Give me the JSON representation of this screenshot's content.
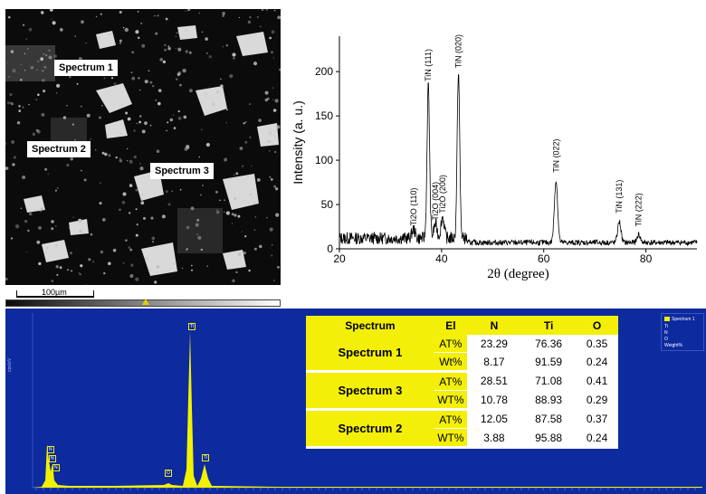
{
  "sem": {
    "labels": [
      "Spectrum 1",
      "Spectrum 2",
      "Spectrum 3"
    ],
    "scale_bar": "100µm"
  },
  "chart_data": {
    "type": "line",
    "xlabel": "2θ (degree)",
    "ylabel": "Intensity (a. u.)",
    "xlim": [
      20,
      90
    ],
    "ylim": [
      0,
      240
    ],
    "xticks": [
      20,
      40,
      60,
      80
    ],
    "yticks": [
      0,
      50,
      100,
      150,
      200
    ],
    "baseline": 12,
    "peaks": [
      {
        "x": 34.5,
        "y": 22,
        "label": "Ti2O (110)"
      },
      {
        "x": 37.4,
        "y": 185,
        "label": "TiN (111)"
      },
      {
        "x": 38.8,
        "y": 28,
        "label": "Ti2O (004)"
      },
      {
        "x": 40.2,
        "y": 36,
        "label": "Ti2O (200)"
      },
      {
        "x": 43.3,
        "y": 200,
        "label": "TiN (020)"
      },
      {
        "x": 62.4,
        "y": 82,
        "label": "TiN (022)"
      },
      {
        "x": 74.8,
        "y": 36,
        "label": "TiN (131)"
      },
      {
        "x": 78.6,
        "y": 21,
        "label": "TiN (222)"
      }
    ],
    "grid": false
  },
  "eds": {
    "badges": [
      "N",
      "N",
      "N",
      "O",
      "Ti",
      "Ti"
    ],
    "legend": [
      "Spectrum 1",
      "Ti",
      "N",
      "O",
      "Weight%"
    ],
    "table": {
      "headers": [
        "Spectrum",
        "El",
        "N",
        "Ti",
        "O"
      ],
      "groups": [
        {
          "name": "Spectrum 1",
          "rows": [
            {
              "el": "AT%",
              "n": "23.29",
              "ti": "76.36",
              "o": "0.35"
            },
            {
              "el": "Wt%",
              "n": "8.17",
              "ti": "91.59",
              "o": "0.24"
            }
          ]
        },
        {
          "name": "Spectrum 3",
          "rows": [
            {
              "el": "AT%",
              "n": "28.51",
              "ti": "71.08",
              "o": "0.41"
            },
            {
              "el": "WT%",
              "n": "10.78",
              "ti": "88.93",
              "o": "0.29"
            }
          ]
        },
        {
          "name": "Spectrum 2",
          "rows": [
            {
              "el": "AT%",
              "n": "12.05",
              "ti": "87.58",
              "o": "0.37"
            },
            {
              "el": "WT%",
              "n": "3.88",
              "ti": "95.88",
              "o": "0.24"
            }
          ]
        }
      ]
    }
  }
}
